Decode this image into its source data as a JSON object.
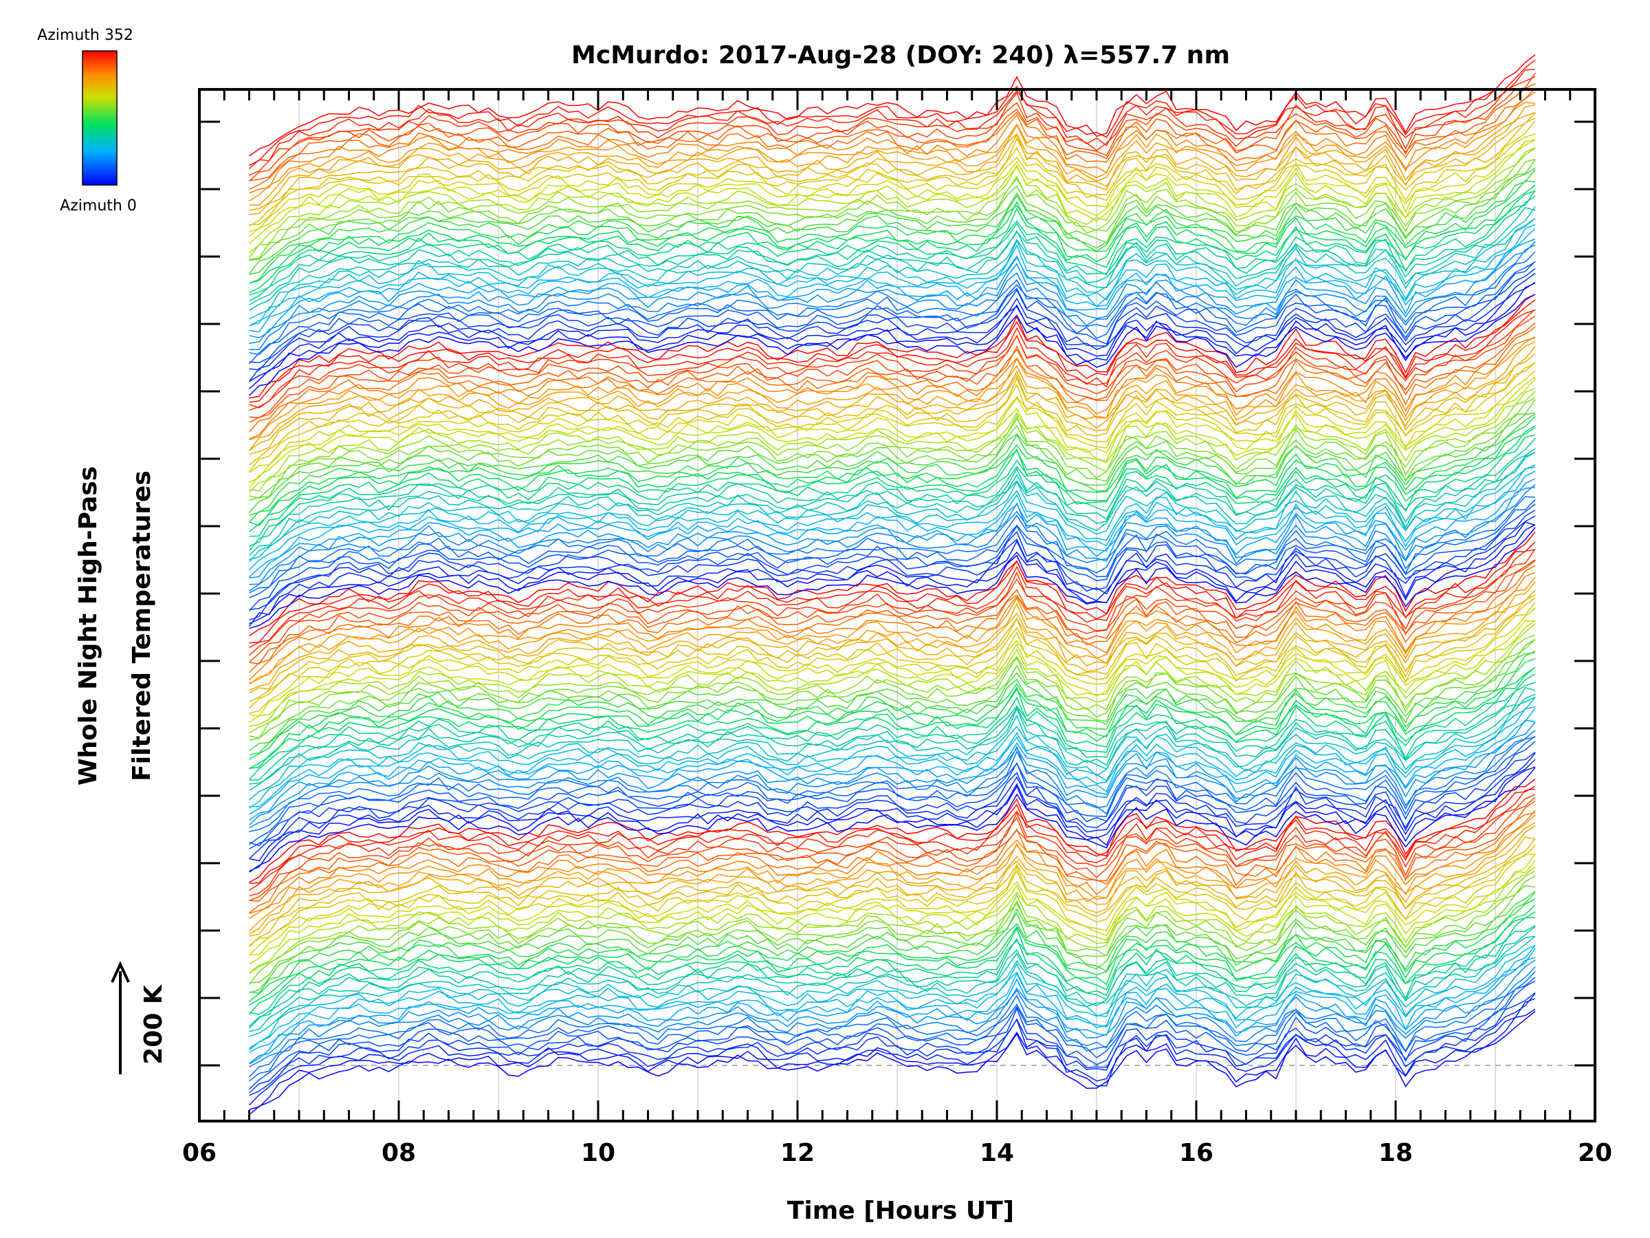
{
  "chart_data": {
    "type": "line",
    "title": "McMurdo: 2017-Aug-28 (DOY: 240) λ=557.7 nm",
    "xlabel": "Time [Hours UT]",
    "ylabel_lines": [
      "Whole Night High-Pass",
      "Filtered Temperatures"
    ],
    "scale_label": "200 K",
    "xlim": [
      6,
      20
    ],
    "x_tick_labels": [
      "06",
      "08",
      "10",
      "12",
      "14",
      "16",
      "18",
      "20"
    ],
    "x_ticks": [
      6,
      8,
      10,
      12,
      14,
      16,
      18,
      20
    ],
    "colorbar": {
      "max_label": "Azimuth 352",
      "min_label": "Azimuth 0",
      "colormap": "rainbow (blue → green → yellow → red)"
    },
    "x_start": 6.5,
    "x_end": 19.4,
    "n_series": 180,
    "series_per_azimuth_sweep": 45,
    "offset_lines": 15,
    "grid": "vertical, light gray, hourly",
    "dashed_baseline": true,
    "features": [
      {
        "x": 6.5,
        "description": "steep ramp-up at start of night"
      },
      {
        "x": 14.2,
        "description": "sharp spike"
      },
      {
        "x": 14.6,
        "description": "abrupt drop"
      },
      {
        "x": 15.1,
        "description": "step"
      },
      {
        "x": 15.6,
        "description": "oscillation"
      },
      {
        "x": 16.3,
        "description": "step"
      },
      {
        "x": 17.0,
        "description": "peak"
      },
      {
        "x": 17.9,
        "description": "peak"
      },
      {
        "x": 18.05,
        "description": "dip"
      },
      {
        "x": 19.4,
        "description": "steep rise at end of night"
      }
    ]
  }
}
